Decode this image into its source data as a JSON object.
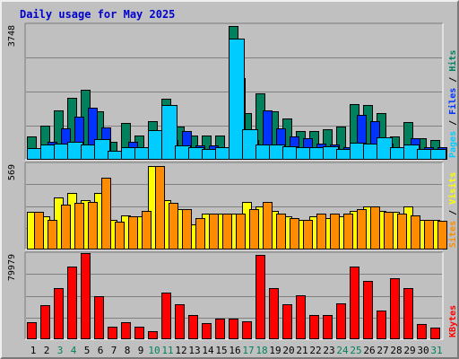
{
  "chart_data": {
    "type": "bar",
    "title": "Daily usage for May 2025",
    "categories": [
      "1",
      "2",
      "3",
      "4",
      "5",
      "6",
      "7",
      "8",
      "9",
      "10",
      "11",
      "12",
      "13",
      "14",
      "15",
      "16",
      "17",
      "18",
      "19",
      "20",
      "21",
      "22",
      "23",
      "24",
      "25",
      "26",
      "27",
      "28",
      "29",
      "30",
      "31"
    ],
    "weekend_days": [
      "3",
      "4",
      "10",
      "11",
      "17",
      "18",
      "24",
      "25",
      "31"
    ],
    "panels": [
      {
        "max_label": "3748",
        "ymax": 3748,
        "axis_label_parts": [
          {
            "text": "Pages",
            "color": "#00ccff"
          },
          {
            "text": " / ",
            "color": "#000000"
          },
          {
            "text": "Files",
            "color": "#0033ff"
          },
          {
            "text": " / ",
            "color": "#000000"
          },
          {
            "text": "Hits",
            "color": "#00805c"
          }
        ],
        "series": [
          {
            "name": "Hits",
            "color": "#00805c",
            "values": [
              650,
              950,
              1380,
              1720,
              1950,
              1340,
              500,
              1030,
              680,
              1070,
              1700,
              920,
              670,
              670,
              670,
              3720,
              1300,
              1850,
              1360,
              1160,
              790,
              790,
              840,
              920,
              1550,
              1530,
              1300,
              660,
              1050,
              600,
              540
            ]
          },
          {
            "name": "Files",
            "color": "#0033ff",
            "values": [
              300,
              490,
              880,
              1200,
              1460,
              890,
              240,
              500,
              340,
              460,
              550,
              790,
              400,
              400,
              300,
              2270,
              550,
              1380,
              880,
              640,
              600,
              440,
              420,
              360,
              1250,
              1070,
              440,
              290,
              610,
              360,
              340
            ]
          },
          {
            "name": "Pages",
            "color": "#00ccff",
            "values": [
              320,
              420,
              460,
              510,
              430,
              580,
              250,
              350,
              340,
              820,
              1530,
              390,
              350,
              290,
              340,
              3370,
              850,
              420,
              430,
              380,
              360,
              340,
              380,
              300,
              480,
              460,
              620,
              350,
              430,
              300,
              290
            ]
          }
        ]
      },
      {
        "max_label": "569",
        "ymax": 569,
        "axis_label_parts": [
          {
            "text": "Sites",
            "color": "#ff8c00"
          },
          {
            "text": " / ",
            "color": "#000000"
          },
          {
            "text": "Visits",
            "color": "#ffff00"
          }
        ],
        "series": [
          {
            "name": "Visits",
            "color": "#ffff00",
            "values": [
              250,
              220,
              350,
              380,
              330,
              380,
              200,
              230,
              220,
              560,
              330,
              270,
              170,
              240,
              240,
              240,
              320,
              290,
              260,
              220,
              200,
              220,
              210,
              220,
              260,
              290,
              260,
              250,
              290,
              200,
              200
            ]
          },
          {
            "name": "Sites",
            "color": "#ff8c00",
            "values": [
              250,
              200,
              300,
              310,
              320,
              480,
              185,
              220,
              260,
              560,
              310,
              270,
              210,
              240,
              240,
              240,
              270,
              320,
              240,
              210,
              200,
              240,
              240,
              240,
              270,
              290,
              250,
              240,
              230,
              200,
              190
            ]
          }
        ]
      },
      {
        "max_label": "79979",
        "ymax": 79979,
        "axis_label_parts": [
          {
            "text": "KBytes",
            "color": "#ff0000"
          }
        ],
        "series": [
          {
            "name": "KBytes",
            "color": "#ff0000",
            "values": [
              16000,
              32000,
              48000,
              68000,
              81000,
              40000,
              12000,
              16000,
              12000,
              7500,
              44000,
              33000,
              23000,
              15000,
              19000,
              19000,
              17000,
              79000,
              48000,
              33000,
              41000,
              23000,
              23000,
              34000,
              68000,
              55000,
              27000,
              57000,
              48000,
              14000,
              11000
            ]
          }
        ]
      }
    ]
  }
}
